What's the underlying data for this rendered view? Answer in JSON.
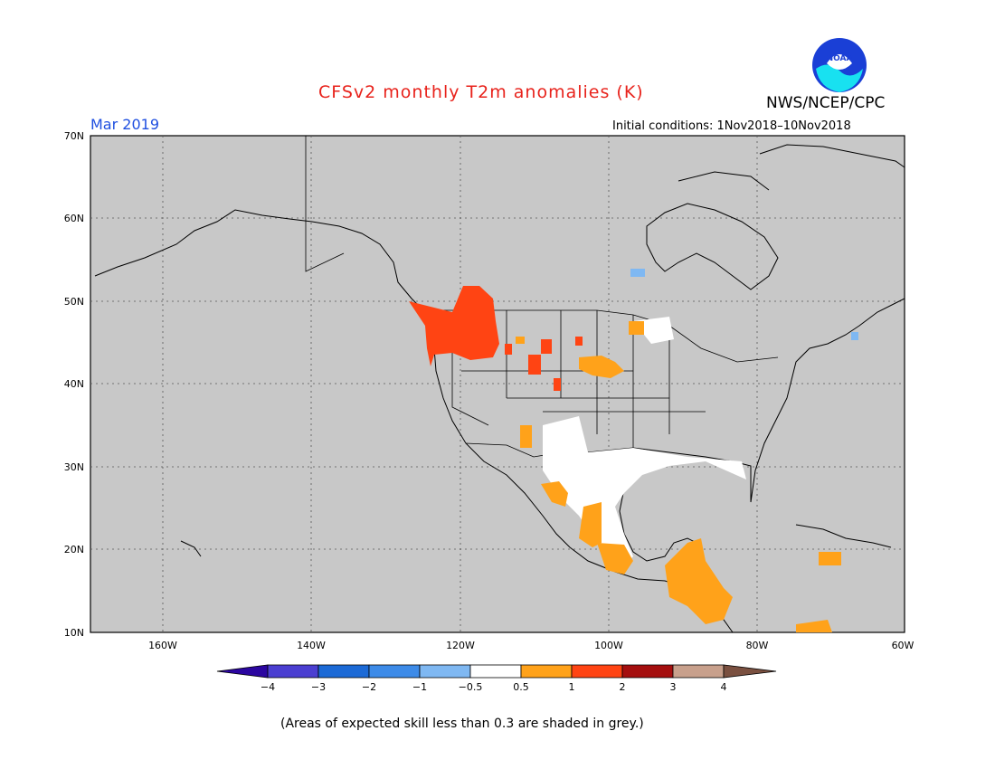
{
  "header": {
    "title": "CFSv2 monthly T2m anomalies (K)",
    "month": "Mar 2019",
    "agency": "NWS/NCEP/CPC",
    "initial_conditions": "Initial conditions: 1Nov2018–10Nov2018",
    "logo_text": "NOAA"
  },
  "map": {
    "region": "North America",
    "background_color": "#c8c8c8",
    "lat_ticks": [
      "70N",
      "60N",
      "50N",
      "40N",
      "30N",
      "20N",
      "10N"
    ],
    "lon_ticks": [
      "160W",
      "140W",
      "120W",
      "100W",
      "80W",
      "60W"
    ]
  },
  "colorbar": {
    "labels": [
      "−4",
      "−3",
      "−2",
      "−1",
      "−0.5",
      "0.5",
      "1",
      "2",
      "3",
      "4"
    ],
    "colors": [
      "#2b06a0",
      "#4b3fd1",
      "#1c6ad6",
      "#3d8be8",
      "#7fb8f2",
      "#ffffff",
      "#ffa21a",
      "#ff4413",
      "#a50f0f",
      "#c8a08c",
      "#7a5040"
    ]
  },
  "footer": {
    "note": "(Areas of expected skill less than 0.3 are shaded in grey.)"
  }
}
